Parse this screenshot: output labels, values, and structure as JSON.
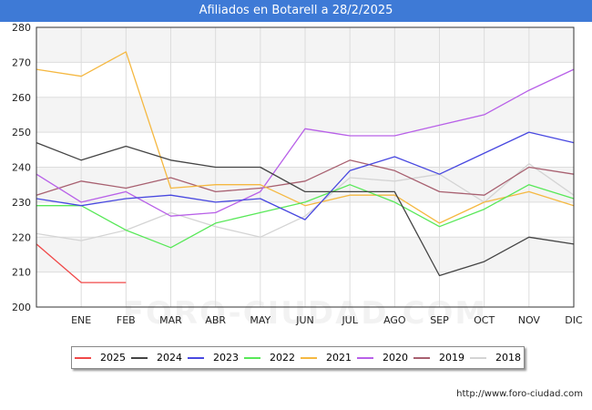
{
  "title": "Afiliados en Botarell a 28/2/2025",
  "source": "http://www.foro-ciudad.com",
  "watermark": "FORO-CIUDAD.COM",
  "chart_data": {
    "type": "line",
    "title": "Afiliados en Botarell a 28/2/2025",
    "categories": [
      "",
      "ENE",
      "FEB",
      "MAR",
      "ABR",
      "MAY",
      "JUN",
      "JUL",
      "AGO",
      "SEP",
      "OCT",
      "NOV",
      "DIC"
    ],
    "ylim": [
      200,
      280
    ],
    "yticks": [
      200,
      210,
      220,
      230,
      240,
      250,
      260,
      270,
      280
    ],
    "grid": true,
    "legend_position": "bottom",
    "series": [
      {
        "name": "2025",
        "color": "#f04848",
        "values": [
          218,
          207,
          207,
          null,
          null,
          null,
          null,
          null,
          null,
          null,
          null,
          null,
          null
        ]
      },
      {
        "name": "2024",
        "color": "#444444",
        "values": [
          247,
          242,
          246,
          242,
          240,
          240,
          233,
          233,
          233,
          209,
          213,
          220,
          218
        ]
      },
      {
        "name": "2023",
        "color": "#4848e0",
        "values": [
          231,
          229,
          231,
          232,
          230,
          231,
          225,
          239,
          243,
          238,
          244,
          250,
          247
        ]
      },
      {
        "name": "2022",
        "color": "#58e858",
        "values": [
          229,
          229,
          222,
          217,
          224,
          227,
          230,
          235,
          230,
          223,
          228,
          235,
          231
        ]
      },
      {
        "name": "2021",
        "color": "#f5b841",
        "values": [
          268,
          266,
          273,
          234,
          235,
          235,
          229,
          232,
          232,
          224,
          230,
          233,
          229
        ]
      },
      {
        "name": "2020",
        "color": "#b860e8",
        "values": [
          238,
          230,
          233,
          226,
          227,
          233,
          251,
          249,
          249,
          252,
          255,
          262,
          268
        ]
      },
      {
        "name": "2019",
        "color": "#a86070",
        "values": [
          232,
          236,
          234,
          237,
          233,
          234,
          236,
          242,
          239,
          233,
          232,
          240,
          238
        ]
      },
      {
        "name": "2018",
        "color": "#d4d4d4",
        "values": [
          221,
          219,
          222,
          227,
          223,
          220,
          226,
          237,
          236,
          238,
          230,
          241,
          232
        ]
      }
    ]
  }
}
